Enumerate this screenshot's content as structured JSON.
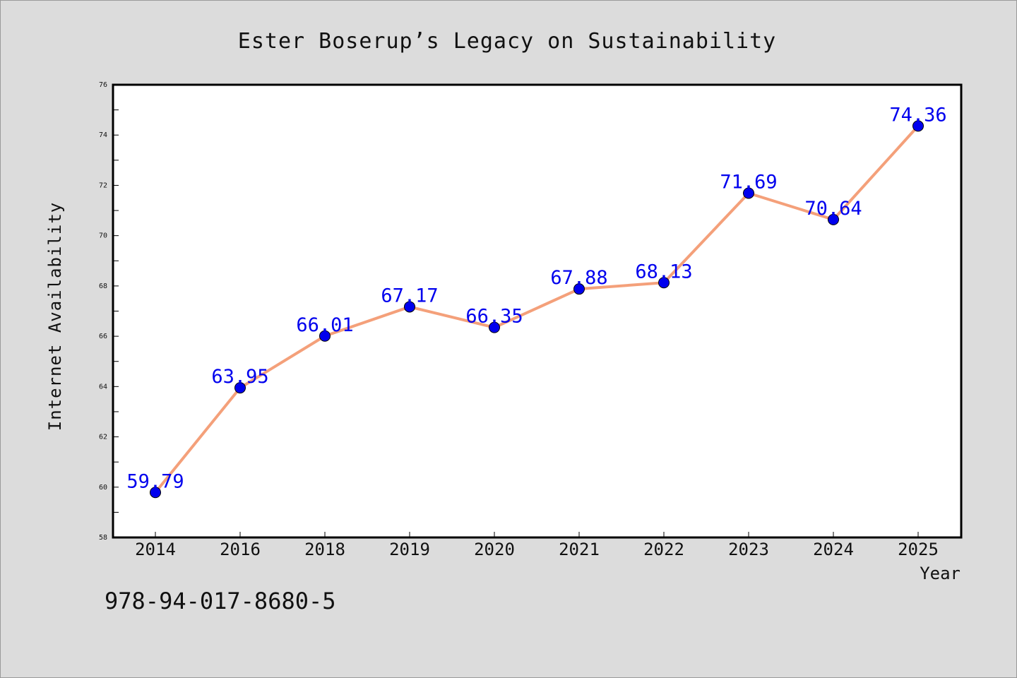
{
  "chart_data": {
    "type": "line",
    "title": "Ester Boserup’s Legacy on Sustainability",
    "xlabel": "Year",
    "ylabel": "Internet Availability",
    "categories": [
      "2014",
      "2016",
      "2018",
      "2019",
      "2020",
      "2021",
      "2022",
      "2023",
      "2024",
      "2025"
    ],
    "series": [
      {
        "values": [
          59.79,
          63.95,
          66.01,
          67.17,
          66.35,
          67.88,
          68.13,
          71.69,
          70.64,
          74.36
        ],
        "labels": [
          "59.79",
          "63.95",
          "66.01",
          "67.17",
          "66.35",
          "67.88",
          "68.13",
          "71.69",
          "70.64",
          "74.36"
        ],
        "line_color": "#f4a07a",
        "marker_color": "#0000ee",
        "label_color": "#0000ee"
      }
    ],
    "ylim": [
      58,
      76
    ],
    "yticks": [
      "58",
      "60",
      "62",
      "64",
      "66",
      "68",
      "70",
      "72",
      "74",
      "76"
    ],
    "grid": false,
    "legend": "none"
  },
  "footer": {
    "code": "978-94-017-8680-5"
  }
}
